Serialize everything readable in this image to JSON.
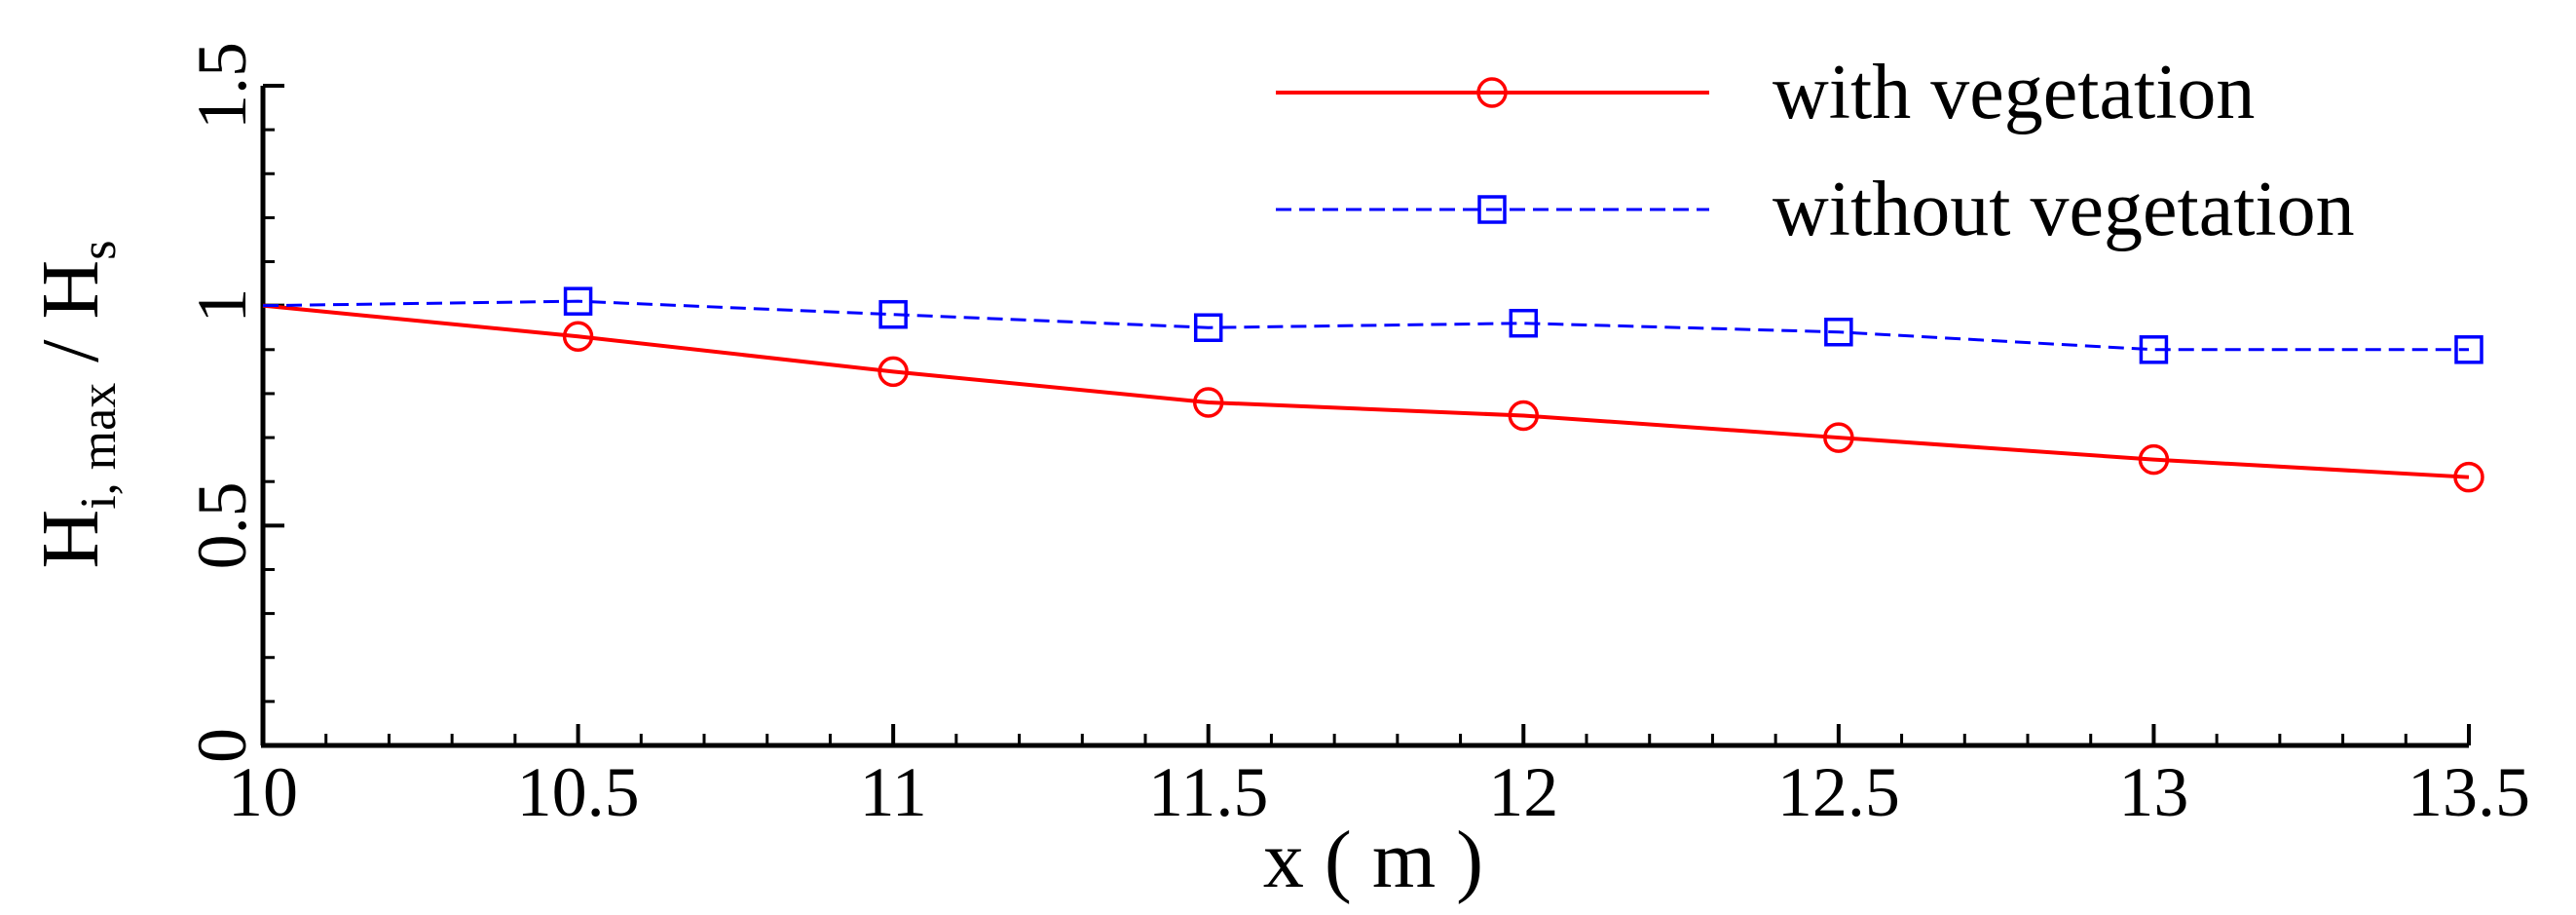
{
  "chart_data": {
    "type": "line",
    "xlabel": "x ( m )",
    "ylabel": {
      "main": "H",
      "sub": "i, max",
      "sep": " / ",
      "main2": "H",
      "sub2": "s"
    },
    "xlim": [
      10,
      13.5
    ],
    "ylim": [
      0,
      1.5
    ],
    "x_ticks": [
      "10",
      "10.5",
      "11",
      "11.5",
      "12",
      "12.5",
      "13",
      "13.5"
    ],
    "y_ticks": [
      "0",
      "0.5",
      "1",
      "1.5"
    ],
    "legend_position": "top-right",
    "grid": false,
    "series": [
      {
        "name": "with vegetation",
        "color": "#ff0000",
        "line_style": "solid",
        "marker": "circle",
        "x": [
          10,
          10.5,
          11,
          11.5,
          12,
          12.5,
          13,
          13.5
        ],
        "y": [
          1.0,
          0.93,
          0.85,
          0.78,
          0.75,
          0.7,
          0.65,
          0.61
        ]
      },
      {
        "name": "without vegetation",
        "color": "#0000ff",
        "line_style": "dashed",
        "marker": "square",
        "x": [
          10,
          10.5,
          11,
          11.5,
          12,
          12.5,
          13,
          13.5
        ],
        "y": [
          1.0,
          1.01,
          0.98,
          0.95,
          0.96,
          0.94,
          0.9,
          0.9
        ]
      }
    ]
  }
}
